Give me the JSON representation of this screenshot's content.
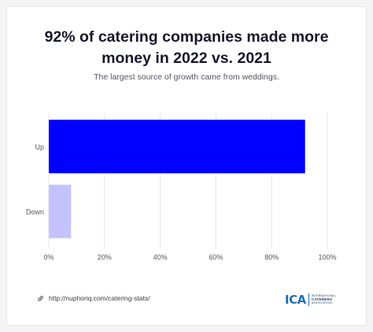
{
  "header": {
    "title_line1": "92% of catering companies made more",
    "title_line2": "money in 2022 vs. 2021",
    "subtitle": "The largest source of growth came from weddings."
  },
  "chart_data": {
    "type": "bar",
    "orientation": "horizontal",
    "title": "92% of catering companies made more money in 2022 vs. 2021",
    "subtitle": "The largest source of growth came from weddings.",
    "categories": [
      "Up",
      "Down"
    ],
    "values": [
      92,
      8
    ],
    "colors": [
      "#0000ff",
      "#c5c3ff"
    ],
    "xlim": [
      0,
      100
    ],
    "xticks": [
      "0%",
      "20%",
      "40%",
      "60%",
      "80%",
      "100%"
    ],
    "xtick_values": [
      0,
      20,
      40,
      60,
      80,
      100
    ],
    "grid": "vertical",
    "legend": "none"
  },
  "footer": {
    "link_icon": "link-icon",
    "url": "http://nuphoriq.com/catering-stats/"
  },
  "logo": {
    "mark": "ICA",
    "line1": "INTERNATIONAL",
    "line2": "CATERERS",
    "line3": "ASSOCIATION",
    "color": "#1d6fb0"
  }
}
